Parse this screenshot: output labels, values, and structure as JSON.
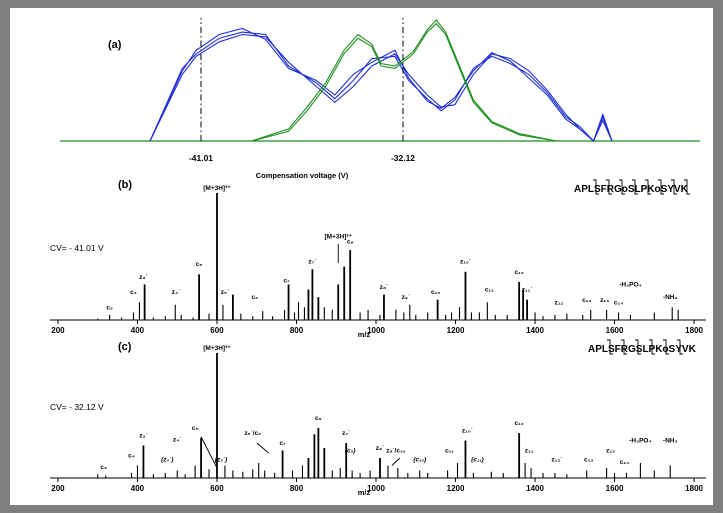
{
  "chart_data": [
    {
      "type": "line",
      "panel_label": "(a)",
      "xlabel": "Compensation voltage (V)",
      "marked_x_ticks": [
        "-41.01",
        "-32.12"
      ],
      "series": [
        {
          "color": "#1f2fd6",
          "points": [
            [
              0,
              0
            ],
            [
              0.07,
              0.55
            ],
            [
              0.1,
              0.7
            ],
            [
              0.15,
              0.82
            ],
            [
              0.2,
              0.88
            ],
            [
              0.25,
              0.86
            ],
            [
              0.3,
              0.65
            ],
            [
              0.36,
              0.45
            ],
            [
              0.4,
              0.32
            ],
            [
              0.44,
              0.45
            ],
            [
              0.48,
              0.62
            ],
            [
              0.53,
              0.72
            ],
            [
              0.56,
              0.55
            ],
            [
              0.6,
              0.38
            ],
            [
              0.63,
              0.28
            ],
            [
              0.66,
              0.3
            ],
            [
              0.7,
              0.55
            ],
            [
              0.74,
              0.72
            ],
            [
              0.78,
              0.68
            ],
            [
              0.82,
              0.58
            ],
            [
              0.86,
              0.42
            ],
            [
              0.9,
              0.22
            ],
            [
              0.93,
              0.1
            ],
            [
              0.96,
              0.0
            ],
            [
              0.98,
              0.2
            ],
            [
              1.0,
              0.0
            ]
          ]
        },
        {
          "color": "#1f2fd6",
          "points": [
            [
              0,
              0
            ],
            [
              0.07,
              0.6
            ],
            [
              0.1,
              0.72
            ],
            [
              0.15,
              0.85
            ],
            [
              0.2,
              0.9
            ],
            [
              0.25,
              0.88
            ],
            [
              0.3,
              0.62
            ],
            [
              0.36,
              0.48
            ],
            [
              0.4,
              0.35
            ],
            [
              0.44,
              0.5
            ],
            [
              0.48,
              0.68
            ],
            [
              0.53,
              0.7
            ],
            [
              0.56,
              0.5
            ],
            [
              0.6,
              0.35
            ],
            [
              0.63,
              0.25
            ],
            [
              0.66,
              0.34
            ],
            [
              0.7,
              0.6
            ],
            [
              0.74,
              0.7
            ],
            [
              0.78,
              0.64
            ],
            [
              0.82,
              0.55
            ],
            [
              0.86,
              0.4
            ],
            [
              0.9,
              0.2
            ],
            [
              0.93,
              0.12
            ],
            [
              0.96,
              0.0
            ],
            [
              0.98,
              0.17
            ],
            [
              1.0,
              0.0
            ]
          ]
        },
        {
          "color": "#1f2fd6",
          "points": [
            [
              0,
              0
            ],
            [
              0.07,
              0.58
            ],
            [
              0.1,
              0.75
            ],
            [
              0.15,
              0.88
            ],
            [
              0.2,
              0.93
            ],
            [
              0.25,
              0.84
            ],
            [
              0.3,
              0.6
            ],
            [
              0.36,
              0.5
            ],
            [
              0.4,
              0.38
            ],
            [
              0.44,
              0.55
            ],
            [
              0.48,
              0.65
            ],
            [
              0.53,
              0.75
            ],
            [
              0.56,
              0.52
            ],
            [
              0.6,
              0.33
            ],
            [
              0.63,
              0.27
            ],
            [
              0.66,
              0.36
            ],
            [
              0.7,
              0.58
            ],
            [
              0.74,
              0.73
            ],
            [
              0.78,
              0.66
            ],
            [
              0.82,
              0.52
            ],
            [
              0.86,
              0.38
            ],
            [
              0.9,
              0.18
            ],
            [
              0.93,
              0.1
            ],
            [
              0.96,
              0.0
            ],
            [
              0.98,
              0.22
            ],
            [
              1.0,
              0.0
            ]
          ]
        },
        {
          "color": "#1f8f1f",
          "points": [
            [
              0.22,
              0
            ],
            [
              0.3,
              0.08
            ],
            [
              0.34,
              0.25
            ],
            [
              0.38,
              0.45
            ],
            [
              0.42,
              0.72
            ],
            [
              0.45,
              0.85
            ],
            [
              0.48,
              0.78
            ],
            [
              0.5,
              0.62
            ],
            [
              0.53,
              0.6
            ],
            [
              0.57,
              0.72
            ],
            [
              0.6,
              0.9
            ],
            [
              0.62,
              0.97
            ],
            [
              0.64,
              0.88
            ],
            [
              0.67,
              0.6
            ],
            [
              0.7,
              0.32
            ],
            [
              0.74,
              0.15
            ],
            [
              0.8,
              0.05
            ],
            [
              0.88,
              0.0
            ]
          ]
        },
        {
          "color": "#1f8f1f",
          "points": [
            [
              0.22,
              0
            ],
            [
              0.3,
              0.1
            ],
            [
              0.34,
              0.28
            ],
            [
              0.38,
              0.48
            ],
            [
              0.42,
              0.75
            ],
            [
              0.45,
              0.88
            ],
            [
              0.48,
              0.8
            ],
            [
              0.5,
              0.64
            ],
            [
              0.53,
              0.62
            ],
            [
              0.57,
              0.74
            ],
            [
              0.6,
              0.92
            ],
            [
              0.62,
              1.0
            ],
            [
              0.64,
              0.9
            ],
            [
              0.67,
              0.62
            ],
            [
              0.7,
              0.34
            ],
            [
              0.74,
              0.16
            ],
            [
              0.8,
              0.06
            ],
            [
              0.88,
              0.0
            ]
          ]
        }
      ]
    },
    {
      "type": "bar",
      "panel_label": "(b)",
      "condition": "CV= - 41.01 V",
      "sequence": "APLSFRGoSLPKoSYVK",
      "xlabel": "m/z",
      "xlim": [
        180,
        1830
      ],
      "x_ticks": [
        200,
        400,
        600,
        800,
        1000,
        1200,
        1400,
        1600,
        1800
      ],
      "peaks": [
        [
          300,
          1
        ],
        [
          330,
          4
        ],
        [
          360,
          2
        ],
        [
          390,
          6
        ],
        [
          405,
          14
        ],
        [
          418,
          28
        ],
        [
          440,
          2
        ],
        [
          470,
          3
        ],
        [
          495,
          12
        ],
        [
          510,
          4
        ],
        [
          540,
          2
        ],
        [
          555,
          36
        ],
        [
          580,
          5
        ],
        [
          600,
          100
        ],
        [
          615,
          12
        ],
        [
          640,
          20
        ],
        [
          660,
          5
        ],
        [
          690,
          3
        ],
        [
          715,
          7
        ],
        [
          740,
          3
        ],
        [
          770,
          8
        ],
        [
          780,
          28
        ],
        [
          795,
          6
        ],
        [
          805,
          14
        ],
        [
          820,
          10
        ],
        [
          830,
          24
        ],
        [
          840,
          40
        ],
        [
          855,
          18
        ],
        [
          870,
          10
        ],
        [
          890,
          8
        ],
        [
          905,
          28
        ],
        [
          920,
          42
        ],
        [
          935,
          55
        ],
        [
          960,
          6
        ],
        [
          980,
          8
        ],
        [
          1010,
          4
        ],
        [
          1020,
          20
        ],
        [
          1050,
          8
        ],
        [
          1070,
          6
        ],
        [
          1085,
          12
        ],
        [
          1100,
          4
        ],
        [
          1130,
          6
        ],
        [
          1155,
          16
        ],
        [
          1175,
          4
        ],
        [
          1190,
          6
        ],
        [
          1210,
          10
        ],
        [
          1225,
          38
        ],
        [
          1240,
          6
        ],
        [
          1260,
          6
        ],
        [
          1280,
          14
        ],
        [
          1300,
          4
        ],
        [
          1330,
          4
        ],
        [
          1360,
          30
        ],
        [
          1370,
          24
        ],
        [
          1380,
          16
        ],
        [
          1400,
          6
        ],
        [
          1420,
          3
        ],
        [
          1450,
          4
        ],
        [
          1480,
          5
        ],
        [
          1520,
          4
        ],
        [
          1540,
          8
        ],
        [
          1580,
          8
        ],
        [
          1610,
          6
        ],
        [
          1640,
          4
        ],
        [
          1700,
          6
        ],
        [
          1745,
          10
        ],
        [
          1760,
          8
        ]
      ],
      "annotations": [
        {
          "text": "[M+3H]³⁺",
          "x": 600,
          "y": 100
        },
        {
          "text": "[M+3H]²⁺",
          "x": 905,
          "y": 62
        },
        {
          "text": "c₃",
          "x": 330,
          "y": 6
        },
        {
          "text": "c₄",
          "x": 390,
          "y": 18
        },
        {
          "text": "z₃˙",
          "x": 415,
          "y": 30
        },
        {
          "text": "z₄˙",
          "x": 497,
          "y": 18
        },
        {
          "text": "c₅",
          "x": 555,
          "y": 40
        },
        {
          "text": "z₅˙",
          "x": 620,
          "y": 18
        },
        {
          "text": "c₆",
          "x": 695,
          "y": 14
        },
        {
          "text": "c₇",
          "x": 775,
          "y": 27
        },
        {
          "text": "z₇˙",
          "x": 840,
          "y": 42
        },
        {
          "text": "c₈",
          "x": 935,
          "y": 58
        },
        {
          "text": "z₈˙",
          "x": 1020,
          "y": 22
        },
        {
          "text": "z₉˙",
          "x": 1075,
          "y": 14
        },
        {
          "text": "c₁₀",
          "x": 1150,
          "y": 18
        },
        {
          "text": "z₁₀˙",
          "x": 1225,
          "y": 42
        },
        {
          "text": "c₁₁",
          "x": 1285,
          "y": 20
        },
        {
          "text": "c₁₂",
          "x": 1360,
          "y": 34
        },
        {
          "text": "z₁₁˙",
          "x": 1380,
          "y": 20
        },
        {
          "text": "z₁₂",
          "x": 1460,
          "y": 10
        },
        {
          "text": "c₁₃",
          "x": 1530,
          "y": 12
        },
        {
          "text": "z₁₃",
          "x": 1575,
          "y": 12
        },
        {
          "text": "c₁₄",
          "x": 1610,
          "y": 10
        },
        {
          "text": "-H₃PO₄",
          "x": 1640,
          "y": 24
        },
        {
          "text": "-NH₃",
          "x": 1740,
          "y": 14
        }
      ]
    },
    {
      "type": "bar",
      "panel_label": "(c)",
      "condition": "CV= - 32.12 V",
      "sequence": "APLSFRGSLPKoSYVK",
      "xlabel": "m/z",
      "xlim": [
        180,
        1830
      ],
      "x_ticks": [
        200,
        400,
        600,
        800,
        1000,
        1200,
        1400,
        1600,
        1800
      ],
      "peaks": [
        [
          300,
          3
        ],
        [
          320,
          2
        ],
        [
          385,
          4
        ],
        [
          400,
          10
        ],
        [
          415,
          26
        ],
        [
          440,
          3
        ],
        [
          470,
          4
        ],
        [
          500,
          6
        ],
        [
          520,
          3
        ],
        [
          545,
          10
        ],
        [
          560,
          32
        ],
        [
          580,
          7
        ],
        [
          600,
          100
        ],
        [
          620,
          10
        ],
        [
          640,
          6
        ],
        [
          665,
          5
        ],
        [
          690,
          7
        ],
        [
          705,
          12
        ],
        [
          720,
          6
        ],
        [
          745,
          4
        ],
        [
          765,
          22
        ],
        [
          790,
          6
        ],
        [
          815,
          10
        ],
        [
          830,
          16
        ],
        [
          845,
          35
        ],
        [
          855,
          40
        ],
        [
          870,
          24
        ],
        [
          890,
          6
        ],
        [
          910,
          8
        ],
        [
          925,
          28
        ],
        [
          940,
          6
        ],
        [
          960,
          4
        ],
        [
          985,
          6
        ],
        [
          1010,
          16
        ],
        [
          1030,
          10
        ],
        [
          1055,
          8
        ],
        [
          1080,
          4
        ],
        [
          1110,
          6
        ],
        [
          1130,
          4
        ],
        [
          1180,
          6
        ],
        [
          1205,
          12
        ],
        [
          1225,
          30
        ],
        [
          1245,
          4
        ],
        [
          1290,
          5
        ],
        [
          1320,
          4
        ],
        [
          1360,
          36
        ],
        [
          1375,
          12
        ],
        [
          1390,
          8
        ],
        [
          1420,
          4
        ],
        [
          1450,
          4
        ],
        [
          1480,
          3
        ],
        [
          1530,
          6
        ],
        [
          1580,
          8
        ],
        [
          1600,
          4
        ],
        [
          1630,
          4
        ],
        [
          1665,
          12
        ],
        [
          1700,
          6
        ],
        [
          1740,
          10
        ]
      ],
      "annotations": [
        {
          "text": "[M+3H]³⁺",
          "x": 600,
          "y": 100
        },
        {
          "text": "c₃",
          "x": 315,
          "y": 5
        },
        {
          "text": "c₄",
          "x": 385,
          "y": 14
        },
        {
          "text": "z₃˙",
          "x": 415,
          "y": 30
        },
        {
          "text": "z₄˙",
          "x": 500,
          "y": 27
        },
        {
          "text": "(z₄˙)",
          "x": 475,
          "y": 11
        },
        {
          "text": "c₅",
          "x": 545,
          "y": 36
        },
        {
          "text": "(z₅˙)",
          "x": 610,
          "y": 11
        },
        {
          "text": "z₅˙/c₆",
          "x": 690,
          "y": 32
        },
        {
          "text": "c₇",
          "x": 765,
          "y": 24
        },
        {
          "text": "c₈",
          "x": 855,
          "y": 44
        },
        {
          "text": "z₇˙",
          "x": 925,
          "y": 32
        },
        {
          "text": "(c₈)",
          "x": 935,
          "y": 18
        },
        {
          "text": "z₈˙",
          "x": 1010,
          "y": 20
        },
        {
          "text": "z₉˙/c₁₀",
          "x": 1050,
          "y": 18
        },
        {
          "text": "(c₁₀)",
          "x": 1110,
          "y": 11
        },
        {
          "text": "c₁₁",
          "x": 1185,
          "y": 18
        },
        {
          "text": "z₁₀˙",
          "x": 1230,
          "y": 34
        },
        {
          "text": "(c₁₁)",
          "x": 1255,
          "y": 11
        },
        {
          "text": "c₁₂",
          "x": 1360,
          "y": 40
        },
        {
          "text": "z₁₁",
          "x": 1385,
          "y": 18
        },
        {
          "text": "z₁₂˙",
          "x": 1455,
          "y": 11
        },
        {
          "text": "c₁₃",
          "x": 1535,
          "y": 11
        },
        {
          "text": "z₁₃",
          "x": 1590,
          "y": 18
        },
        {
          "text": "c₁₄",
          "x": 1625,
          "y": 9
        },
        {
          "text": "-H₃PO₄",
          "x": 1665,
          "y": 26
        },
        {
          "text": "-NH₃",
          "x": 1740,
          "y": 26
        }
      ]
    }
  ]
}
